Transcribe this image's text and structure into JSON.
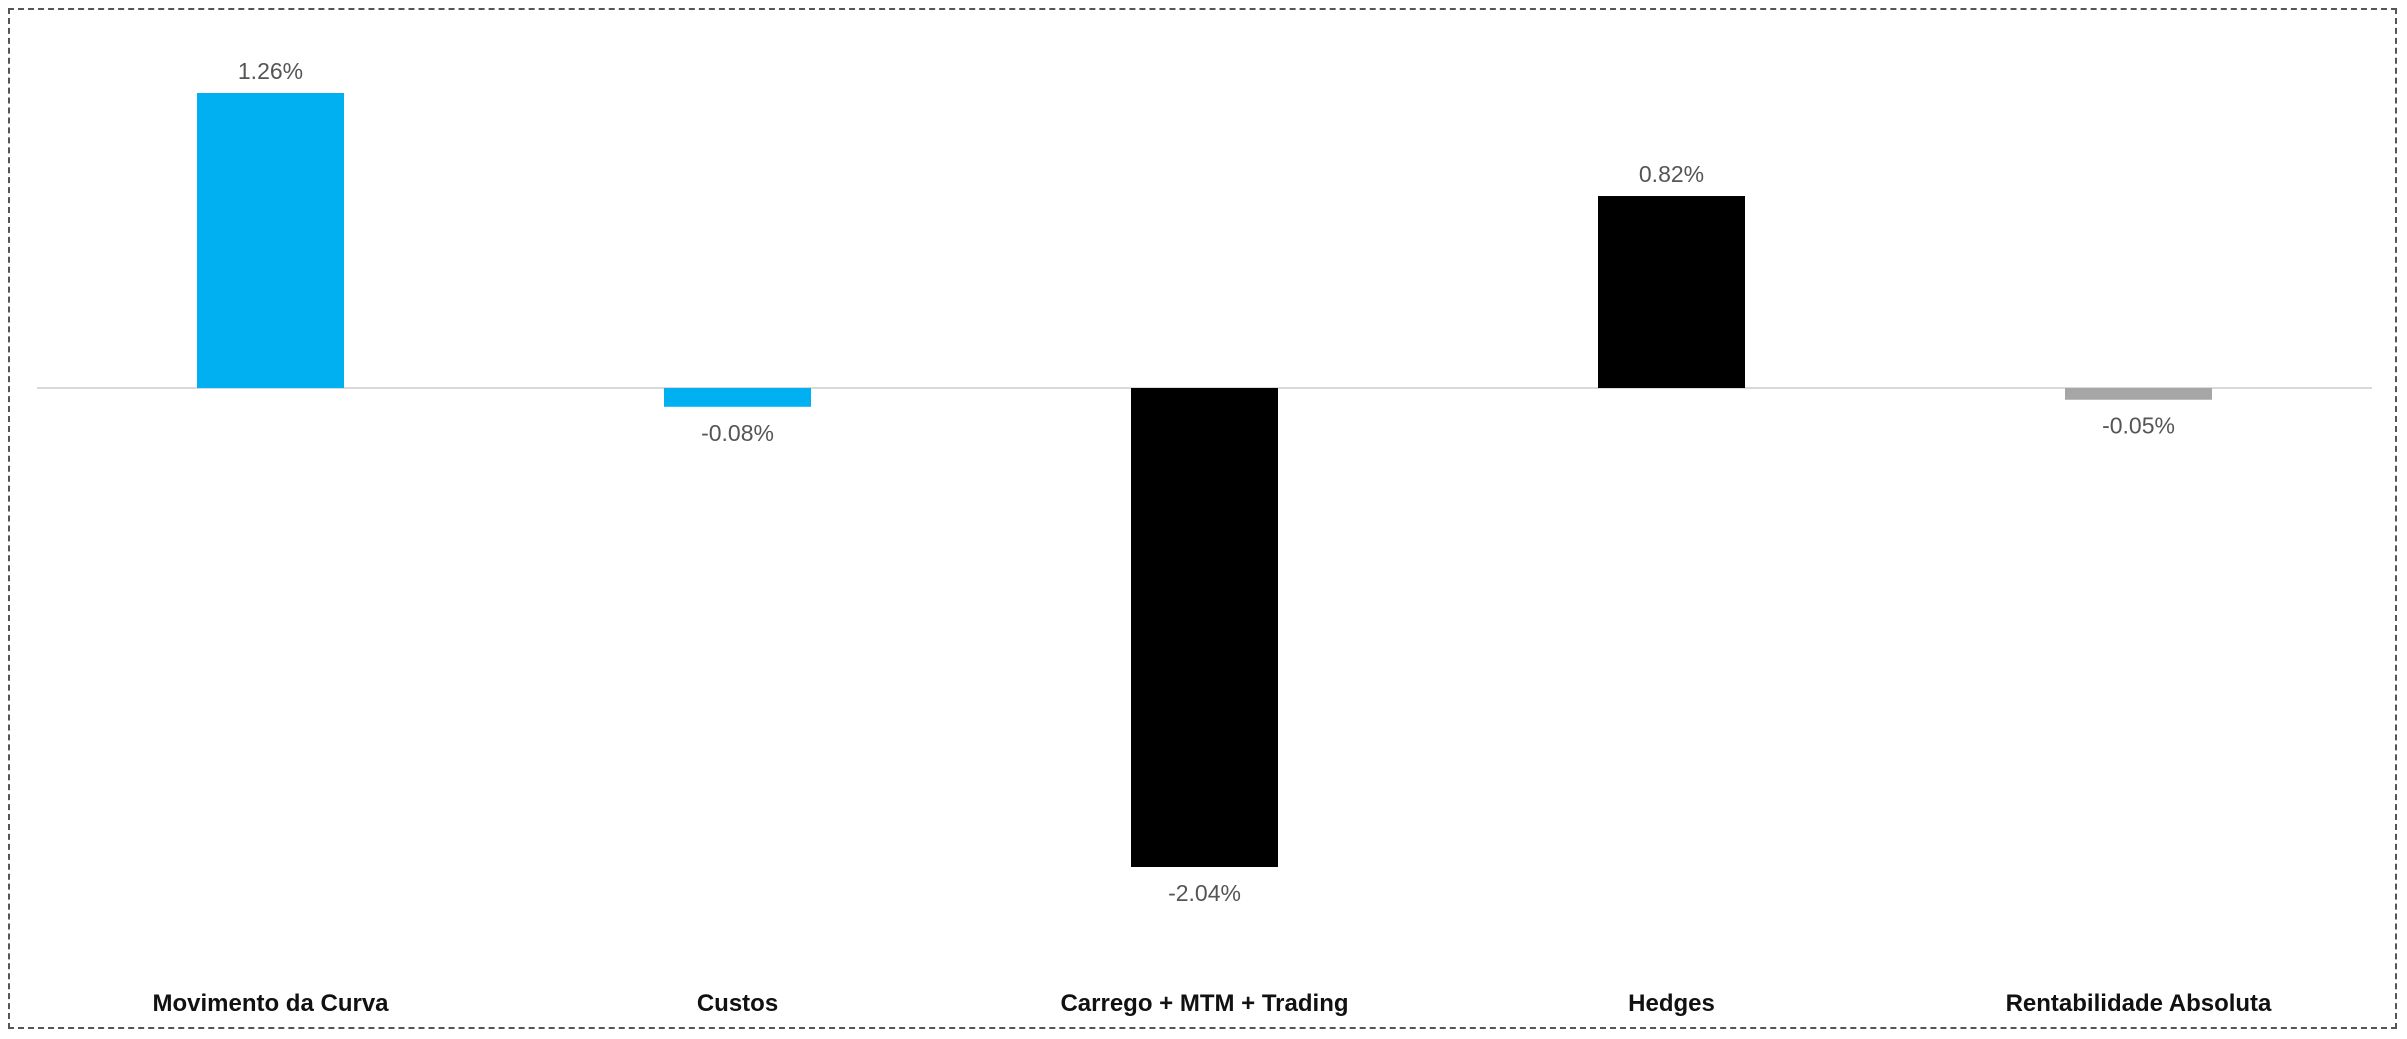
{
  "chart_data": {
    "type": "bar",
    "title": "",
    "xlabel": "",
    "ylabel": "",
    "categories": [
      "Movimento da Curva",
      "Custos",
      "Carrego + MTM + Trading",
      "Hedges",
      "Rentabilidade Absoluta"
    ],
    "values": [
      1.26,
      -0.08,
      -2.04,
      0.82,
      -0.05
    ],
    "value_labels": [
      "1.26%",
      "-0.08%",
      "-2.04%",
      "0.82%",
      "-0.05%"
    ],
    "bar_colors": [
      "#00B0F0",
      "#00B0F0",
      "#000000",
      "#000000",
      "#A6A6A6"
    ],
    "ylim": [
      -2.04,
      1.26
    ],
    "grid": false,
    "legend": "none",
    "zero_line_color": "#D9D9D9"
  }
}
